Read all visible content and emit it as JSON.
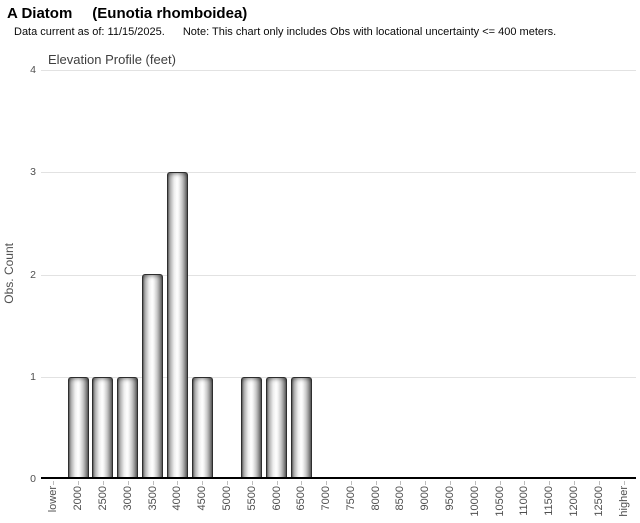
{
  "header": {
    "title_common": "A Diatom",
    "title_scientific": "(Eunotia rhomboidea)",
    "data_current": "Data current as of: 11/15/2025.",
    "note": "Note: This chart only includes Obs with locational uncertainty <= 400 meters."
  },
  "chart_data": {
    "type": "bar",
    "title": "Elevation Profile (feet)",
    "xlabel": "",
    "ylabel": "Obs. Count",
    "ylim": [
      0,
      4
    ],
    "yticks": [
      0,
      1,
      2,
      3,
      4
    ],
    "grid": true,
    "legend_position": "none",
    "categories": [
      "lower",
      "2000",
      "2500",
      "3000",
      "3500",
      "4000",
      "4500",
      "5000",
      "5500",
      "6000",
      "6500",
      "7000",
      "7500",
      "8000",
      "8500",
      "9000",
      "9500",
      "10000",
      "10500",
      "11000",
      "11500",
      "12000",
      "12500",
      "higher"
    ],
    "values": [
      0,
      1,
      1,
      1,
      2,
      3,
      1,
      0,
      1,
      1,
      1,
      0,
      0,
      0,
      0,
      0,
      0,
      0,
      0,
      0,
      0,
      0,
      0,
      0
    ],
    "colors": {
      "bar_edge": "#2e2e2e",
      "bar_gradient_dark": "#5c5c5c",
      "bar_gradient_light": "#ffffff",
      "gridline": "#e2e2e2",
      "axis_line": "#000000",
      "tick_mark": "#bdbdbd",
      "axis_text": "#4f4f4f",
      "chart_title_text": "#3f3f3f",
      "header_text": "#000000"
    }
  }
}
